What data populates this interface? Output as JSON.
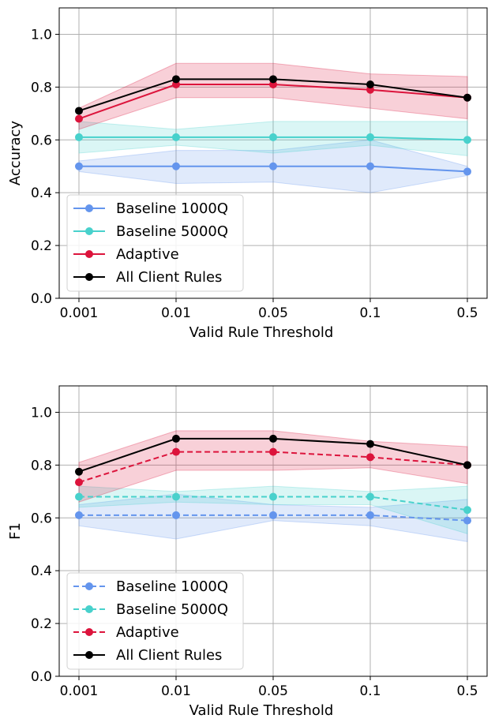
{
  "chart_data": [
    {
      "type": "line",
      "id": "accuracy",
      "title": "",
      "xlabel": "Valid Rule Threshold",
      "ylabel": "Accuracy",
      "categories": [
        "0.001",
        "0.01",
        "0.05",
        "0.1",
        "0.5"
      ],
      "ylim": [
        0,
        1.1
      ],
      "yticks": [
        "0.0",
        "0.2",
        "0.4",
        "0.6",
        "0.8",
        "1.0"
      ],
      "grid": true,
      "legend_position": "lower-left",
      "series": [
        {
          "name": "Baseline 1000Q",
          "color": "#6495ED",
          "dash": "solid",
          "values": [
            0.5,
            0.5,
            0.5,
            0.5,
            0.48
          ],
          "lower": [
            0.48,
            0.435,
            0.44,
            0.4,
            0.465
          ],
          "upper": [
            0.52,
            0.56,
            0.56,
            0.6,
            0.5
          ],
          "band": true
        },
        {
          "name": "Baseline 5000Q",
          "color": "#48D1CC",
          "dash": "solid",
          "values": [
            0.61,
            0.61,
            0.61,
            0.61,
            0.6
          ],
          "lower": [
            0.55,
            0.58,
            0.55,
            0.58,
            0.54
          ],
          "upper": [
            0.67,
            0.64,
            0.67,
            0.67,
            0.67
          ],
          "band": true
        },
        {
          "name": "Adaptive",
          "color": "#DC143C",
          "dash": "solid",
          "values": [
            0.68,
            0.81,
            0.81,
            0.79,
            0.76
          ],
          "lower": [
            0.64,
            0.76,
            0.76,
            0.72,
            0.68
          ],
          "upper": [
            0.72,
            0.89,
            0.89,
            0.85,
            0.84
          ],
          "band": true
        },
        {
          "name": "All Client Rules",
          "color": "#000000",
          "dash": "solid",
          "values": [
            0.71,
            0.83,
            0.83,
            0.81,
            0.76
          ],
          "band": false
        }
      ]
    },
    {
      "type": "line",
      "id": "f1",
      "title": "",
      "xlabel": "Valid Rule Threshold",
      "ylabel": "F1",
      "categories": [
        "0.001",
        "0.01",
        "0.05",
        "0.1",
        "0.5"
      ],
      "ylim": [
        0,
        1.1
      ],
      "yticks": [
        "0.0",
        "0.2",
        "0.4",
        "0.6",
        "0.8",
        "1.0"
      ],
      "grid": true,
      "legend_position": "lower-left",
      "series": [
        {
          "name": "Baseline 1000Q",
          "color": "#6495ED",
          "dash": "dashed",
          "values": [
            0.61,
            0.61,
            0.61,
            0.61,
            0.59
          ],
          "lower": [
            0.57,
            0.52,
            0.59,
            0.57,
            0.51
          ],
          "upper": [
            0.65,
            0.69,
            0.65,
            0.64,
            0.67
          ],
          "band": true
        },
        {
          "name": "Baseline 5000Q",
          "color": "#48D1CC",
          "dash": "dashed",
          "values": [
            0.68,
            0.68,
            0.68,
            0.68,
            0.63
          ],
          "lower": [
            0.64,
            0.66,
            0.65,
            0.65,
            0.54
          ],
          "upper": [
            0.72,
            0.7,
            0.72,
            0.7,
            0.72
          ],
          "band": true
        },
        {
          "name": "Adaptive",
          "color": "#DC143C",
          "dash": "dashed",
          "values": [
            0.735,
            0.85,
            0.85,
            0.83,
            0.8
          ],
          "lower": [
            0.66,
            0.78,
            0.78,
            0.79,
            0.73
          ],
          "upper": [
            0.81,
            0.93,
            0.93,
            0.89,
            0.87
          ],
          "band": true
        },
        {
          "name": "All Client Rules",
          "color": "#000000",
          "dash": "solid",
          "values": [
            0.775,
            0.9,
            0.9,
            0.88,
            0.8
          ],
          "band": false
        }
      ]
    }
  ]
}
